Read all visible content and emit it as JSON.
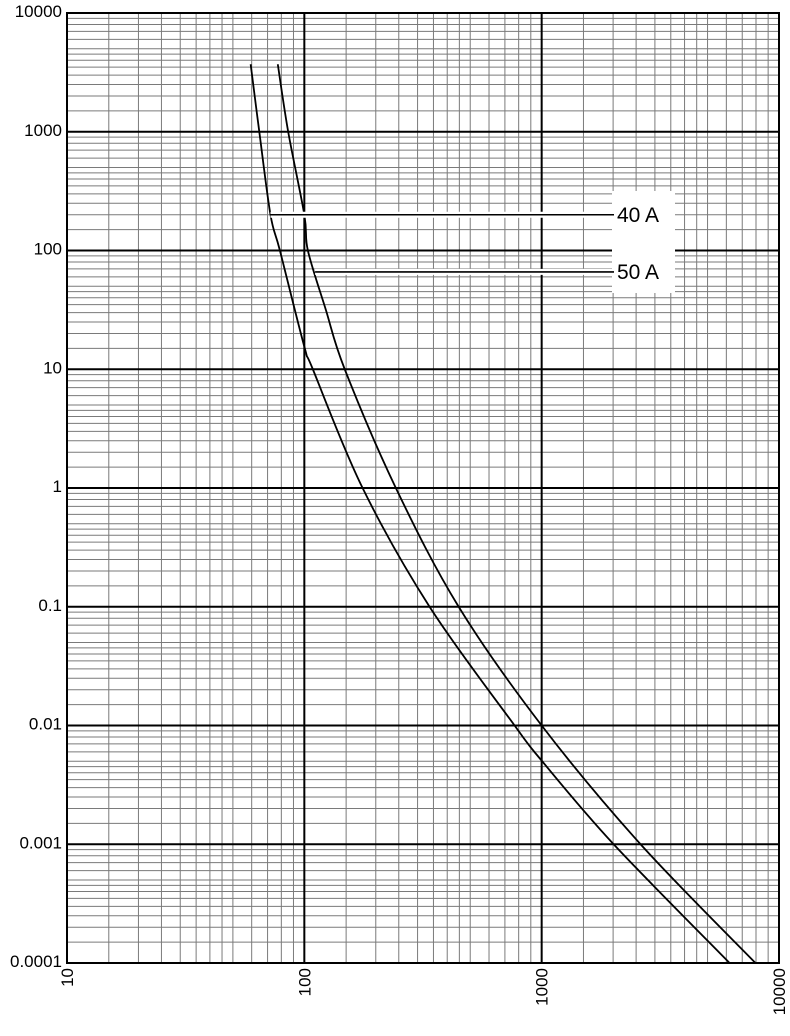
{
  "chart_data": {
    "type": "line",
    "title": "",
    "xlabel": "",
    "ylabel": "",
    "xscale": "log",
    "yscale": "log",
    "xlim": [
      10,
      10000
    ],
    "ylim": [
      0.0001,
      10000
    ],
    "grid": true,
    "x_tick_labels": [
      "10",
      "100",
      "1000",
      "10000"
    ],
    "y_tick_labels": [
      "10000",
      "1000",
      "100",
      "10",
      "1",
      "0.1",
      "0.01",
      "0.001",
      "0.0001"
    ],
    "x_ticks": [
      10,
      100,
      1000,
      10000
    ],
    "y_ticks": [
      10000,
      1000,
      100,
      10,
      1,
      0.1,
      0.01,
      0.001,
      0.0001
    ],
    "minor_grid_multipliers": [
      1.5,
      2,
      2.5,
      3,
      3.5,
      4,
      4.5,
      5,
      6,
      7,
      8,
      9
    ],
    "series": [
      {
        "name": "40 A",
        "label": "40 A",
        "label_anchor": {
          "x": 72,
          "y": 200
        },
        "points": [
          [
            59.4,
            3700
          ],
          [
            64.6,
            1000
          ],
          [
            72,
            200
          ],
          [
            78.9,
            100
          ],
          [
            100,
            15.5
          ],
          [
            108.6,
            10
          ],
          [
            176,
            1
          ],
          [
            337,
            0.1
          ],
          [
            769,
            0.01
          ],
          [
            1000,
            0.00506
          ],
          [
            2010,
            0.001
          ],
          [
            6190,
            0.0001
          ]
        ]
      },
      {
        "name": "50 A",
        "label": "50 A",
        "label_anchor": {
          "x": 111,
          "y": 66
        },
        "points": [
          [
            77.3,
            3700
          ],
          [
            85.5,
            1000
          ],
          [
            100,
            200
          ],
          [
            103.5,
            100
          ],
          [
            123,
            32
          ],
          [
            148,
            10
          ],
          [
            243,
            1
          ],
          [
            447,
            0.1
          ],
          [
            1000,
            0.01
          ],
          [
            2610,
            0.001
          ],
          [
            7960,
            0.0001
          ]
        ]
      }
    ],
    "legend": {
      "position": "inline-right",
      "entries": [
        "40 A",
        "50 A"
      ]
    }
  }
}
